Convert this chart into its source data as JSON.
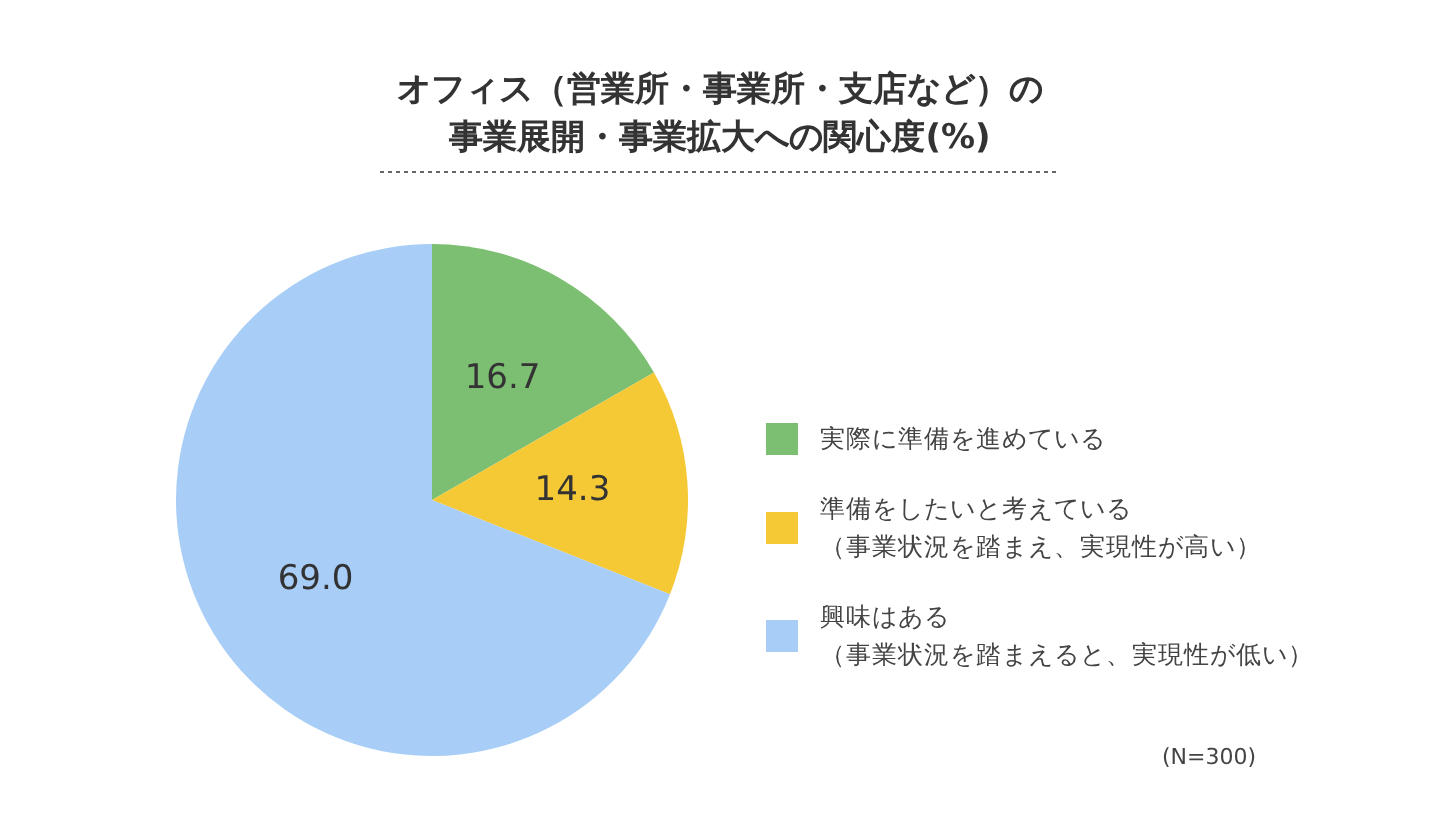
{
  "chart_data": {
    "type": "pie",
    "title": "オフィス（営業所・事業所・支店など）の事業展開・事業拡大への関心度(%)",
    "categories": [
      "実際に準備を進めている",
      "準備をしたいと考えている（事業状況を踏まえ、実現性が高い）",
      "興味はある（事業状況を踏まえると、実現性が低い）"
    ],
    "values": [
      16.7,
      14.3,
      69.0
    ],
    "colors": [
      "#7dbf72",
      "#f5c935",
      "#a8cdf6"
    ],
    "value_labels": [
      "16.7",
      "14.3",
      "69.0"
    ],
    "legend": "right",
    "annotations": [
      "(N=300)"
    ]
  }
}
